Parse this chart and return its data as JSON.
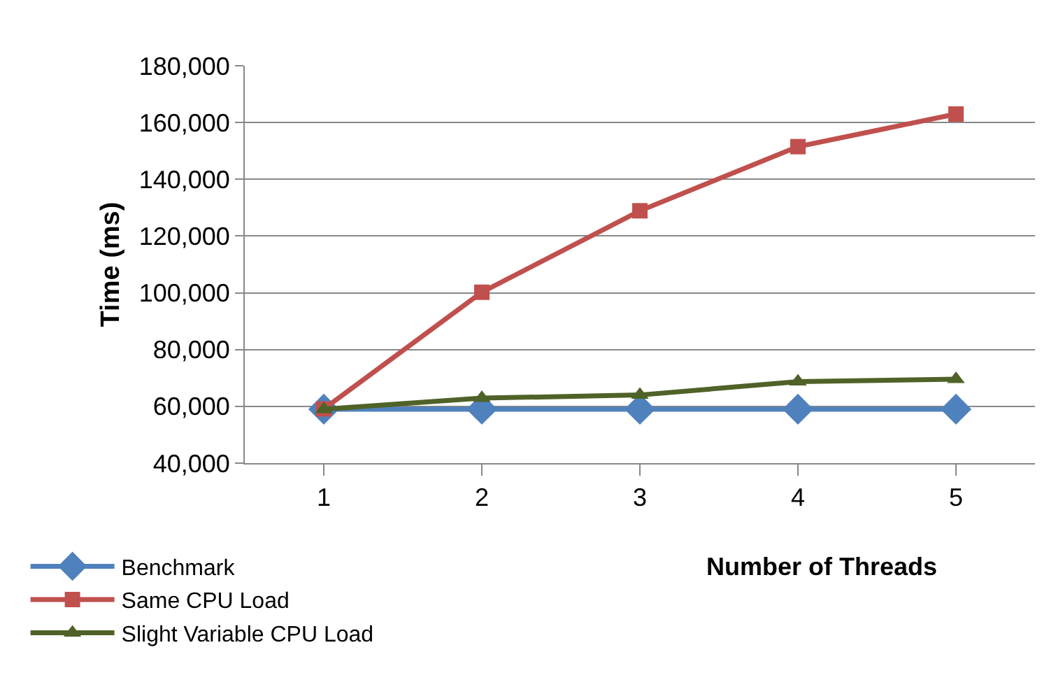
{
  "chart_data": {
    "type": "line",
    "xlabel": "Number of Threads",
    "ylabel": "Time (ms)",
    "categories": [
      "1",
      "2",
      "3",
      "4",
      "5"
    ],
    "series": [
      {
        "name": "Benchmark",
        "color": "#4f81bd",
        "marker": "diamond",
        "values": [
          59000,
          59000,
          59000,
          59000,
          59000
        ]
      },
      {
        "name": "Same CPU Load",
        "color": "#c0504d",
        "marker": "square",
        "values": [
          59100,
          100200,
          128900,
          151500,
          163000
        ]
      },
      {
        "name": "Slight Variable CPU Load",
        "color": "#4f6228",
        "marker": "triangle",
        "values": [
          59000,
          62900,
          64000,
          68700,
          69600
        ]
      }
    ],
    "ylim": [
      40000,
      180000
    ],
    "yticks": [
      {
        "value": 40000,
        "label": "40,000"
      },
      {
        "value": 60000,
        "label": "60,000"
      },
      {
        "value": 80000,
        "label": "80,000"
      },
      {
        "value": 100000,
        "label": "100,000"
      },
      {
        "value": 120000,
        "label": "120,000"
      },
      {
        "value": 140000,
        "label": "140,000"
      },
      {
        "value": 160000,
        "label": "160,000"
      },
      {
        "value": 180000,
        "label": "180,000"
      }
    ],
    "grid": "y",
    "legend": "bottom left"
  }
}
